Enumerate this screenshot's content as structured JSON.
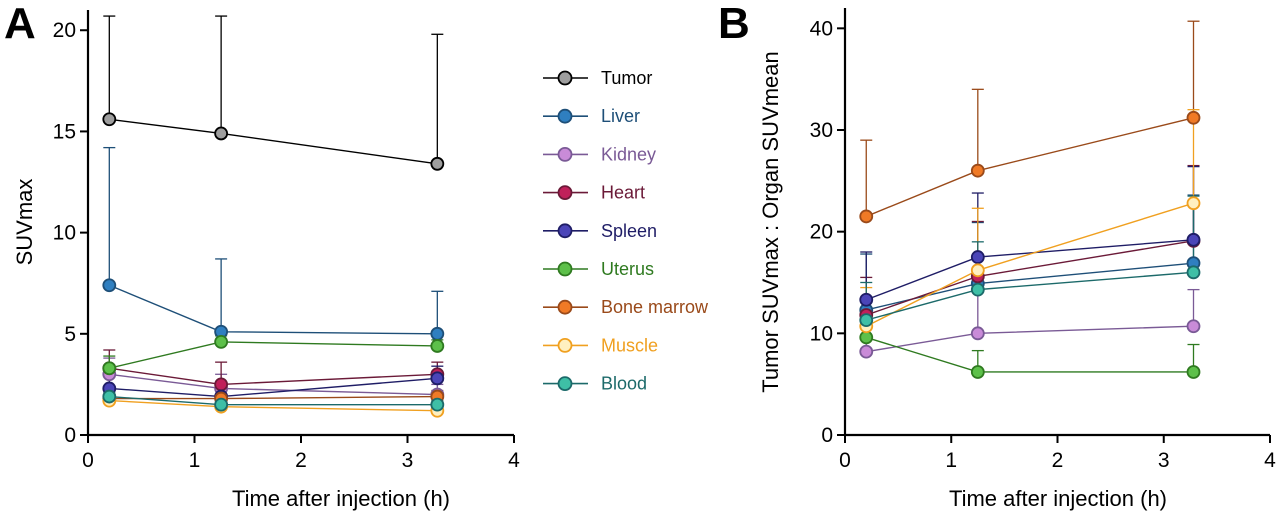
{
  "panels": {
    "a_letter": "A",
    "b_letter": "B"
  },
  "legend_items": [
    "Tumor",
    "Liver",
    "Kidney",
    "Heart",
    "Spleen",
    "Uterus",
    "Bone marrow",
    "Muscle",
    "Blood"
  ],
  "series_colors": {
    "Tumor": {
      "fill": "#9e9e9e",
      "line": "#000000",
      "label": "#000000"
    },
    "Liver": {
      "fill": "#2f7fc0",
      "line": "#1e4f78",
      "label": "#1e4f78"
    },
    "Kidney": {
      "fill": "#c98bd8",
      "line": "#7a5a96",
      "label": "#7a5a96"
    },
    "Heart": {
      "fill": "#c0205a",
      "line": "#6b1a38",
      "label": "#6b1a38"
    },
    "Spleen": {
      "fill": "#4b45b8",
      "line": "#1f1d66",
      "label": "#1f1d66"
    },
    "Uterus": {
      "fill": "#5dc04a",
      "line": "#2f7a20",
      "label": "#2f7a20"
    },
    "Bone marrow": {
      "fill": "#f07a26",
      "line": "#9a4a1a",
      "label": "#9a4a1a"
    },
    "Muscle": {
      "fill": "#fff0c0",
      "line": "#f0a020",
      "label": "#f0a020"
    },
    "Blood": {
      "fill": "#3ebfa6",
      "line": "#1c6a6a",
      "label": "#1c6a6a"
    }
  },
  "chart_data": [
    {
      "type": "line",
      "panel": "A",
      "xlabel": "Time after injection (h)",
      "ylabel": "SUVmax",
      "xlim": [
        0,
        4
      ],
      "ylim": [
        0,
        21
      ],
      "xticks": [
        0,
        1,
        2,
        3,
        4
      ],
      "yticks": [
        0,
        5,
        10,
        15,
        20
      ],
      "x": [
        0.2,
        1.25,
        3.28
      ],
      "series": [
        {
          "name": "Tumor",
          "values": [
            15.6,
            14.9,
            13.4
          ],
          "error_upper": [
            20.7,
            20.7,
            19.8
          ]
        },
        {
          "name": "Liver",
          "values": [
            7.4,
            5.1,
            5.0
          ],
          "error_upper": [
            14.2,
            8.7,
            7.1
          ]
        },
        {
          "name": "Kidney",
          "values": [
            3.0,
            2.3,
            2.0
          ],
          "error_upper": [
            3.8,
            3.0,
            2.5
          ]
        },
        {
          "name": "Heart",
          "values": [
            3.3,
            2.5,
            3.0
          ],
          "error_upper": [
            4.2,
            3.6,
            3.6
          ]
        },
        {
          "name": "Spleen",
          "values": [
            2.3,
            1.9,
            2.8
          ],
          "error_upper": [
            2.9,
            2.3,
            3.4
          ]
        },
        {
          "name": "Uterus",
          "values": [
            3.3,
            4.6,
            4.4
          ],
          "error_upper": [
            3.9,
            4.9,
            4.7
          ]
        },
        {
          "name": "Bone marrow",
          "values": [
            1.8,
            1.8,
            1.9
          ],
          "error_upper": [
            2.2,
            2.2,
            2.2
          ]
        },
        {
          "name": "Muscle",
          "values": [
            1.7,
            1.4,
            1.2
          ],
          "error_upper": [
            1.9,
            1.6,
            1.4
          ]
        },
        {
          "name": "Blood",
          "values": [
            1.9,
            1.5,
            1.5
          ],
          "error_upper": [
            2.1,
            1.7,
            1.7
          ]
        }
      ]
    },
    {
      "type": "line",
      "panel": "B",
      "xlabel": "Time after injection (h)",
      "ylabel": "Tumor SUVmax : Organ SUVmean",
      "xlim": [
        0,
        4
      ],
      "ylim": [
        0,
        42
      ],
      "xticks": [
        0,
        1,
        2,
        3,
        4
      ],
      "yticks": [
        0,
        10,
        20,
        30,
        40
      ],
      "x": [
        0.2,
        1.25,
        3.28
      ],
      "series": [
        {
          "name": "Liver",
          "values": [
            12.3,
            14.9,
            16.9
          ],
          "error_upper": [
            17.8,
            20.9,
            23.6
          ]
        },
        {
          "name": "Kidney",
          "values": [
            8.2,
            10.0,
            10.7
          ],
          "error_upper": [
            10.8,
            14.3,
            14.3
          ]
        },
        {
          "name": "Heart",
          "values": [
            11.8,
            15.6,
            19.1
          ],
          "error_upper": [
            15.5,
            21.0,
            26.5
          ]
        },
        {
          "name": "Spleen",
          "values": [
            13.3,
            17.5,
            19.2
          ],
          "error_upper": [
            18.0,
            23.8,
            26.4
          ]
        },
        {
          "name": "Uterus",
          "values": [
            9.6,
            6.2,
            6.2
          ],
          "error_upper": [
            11.3,
            8.3,
            8.9
          ]
        },
        {
          "name": "Bone marrow",
          "values": [
            21.5,
            26.0,
            31.2
          ],
          "error_upper": [
            29.0,
            34.0,
            40.7
          ]
        },
        {
          "name": "Muscle",
          "values": [
            10.7,
            16.2,
            22.8
          ],
          "error_upper": [
            14.5,
            22.3,
            32.0
          ]
        },
        {
          "name": "Blood",
          "values": [
            11.3,
            14.3,
            16.0
          ],
          "error_upper": [
            15.0,
            19.0,
            23.5
          ]
        }
      ]
    }
  ]
}
